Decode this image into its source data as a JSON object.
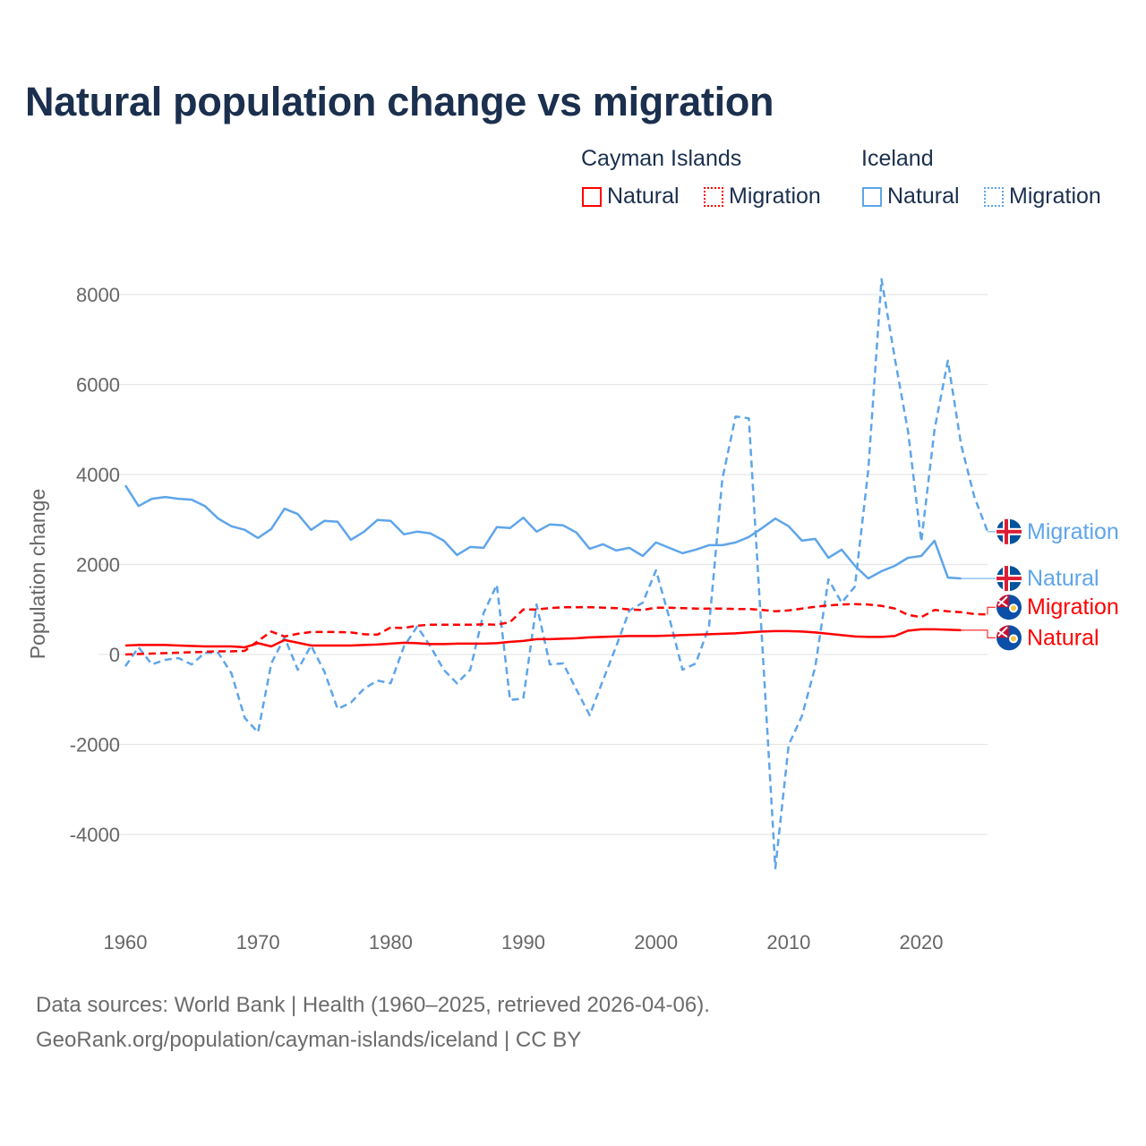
{
  "title": "Natural population change vs migration",
  "legend": {
    "groups": [
      {
        "name": "Cayman Islands",
        "color": "#ff0000",
        "items": [
          "Natural",
          "Migration"
        ]
      },
      {
        "name": "Iceland",
        "color": "#5ea5ea",
        "items": [
          "Natural",
          "Migration"
        ]
      }
    ]
  },
  "footer": {
    "line1": "Data sources: World Bank | Health (1960–2025, retrieved 2026-04-06).",
    "line2": "GeoRank.org/population/cayman-islands/iceland | CC BY"
  },
  "chart_data": {
    "type": "line",
    "title": "Natural population change vs migration",
    "xlabel": "",
    "ylabel": "Population change",
    "xlim": [
      1960,
      2025
    ],
    "ylim": [
      -5000,
      8500
    ],
    "xticks": [
      1960,
      1970,
      1980,
      1990,
      2000,
      2010,
      2020
    ],
    "yticks": [
      -4000,
      -2000,
      0,
      2000,
      4000,
      6000,
      8000
    ],
    "grid": true,
    "legend_position": "top-right",
    "series": [
      {
        "country": "Iceland",
        "name": "Migration",
        "style": "dashed",
        "color": "#5ea5ea",
        "start": 1960,
        "values": [
          -260,
          160,
          -220,
          -120,
          -80,
          -220,
          40,
          40,
          -420,
          -1410,
          -1730,
          -200,
          380,
          -340,
          200,
          -380,
          -1210,
          -1070,
          -760,
          -580,
          -640,
          180,
          620,
          180,
          -340,
          -640,
          -340,
          920,
          1550,
          -1010,
          -980,
          1110,
          -220,
          -200,
          -780,
          -1350,
          -580,
          180,
          980,
          1150,
          1870,
          820,
          -340,
          -200,
          620,
          3900,
          5290,
          5250,
          300,
          -4750,
          -2010,
          -1370,
          -280,
          1670,
          1150,
          1510,
          4100,
          8340,
          6590,
          4960,
          2510,
          5000,
          6530,
          4660,
          3500,
          2730
        ]
      },
      {
        "country": "Iceland",
        "name": "Natural",
        "style": "solid",
        "color": "#5ea5ea",
        "start": 1960,
        "values": [
          3760,
          3300,
          3460,
          3500,
          3460,
          3440,
          3300,
          3020,
          2850,
          2770,
          2590,
          2790,
          3240,
          3120,
          2770,
          2970,
          2950,
          2550,
          2730,
          2990,
          2970,
          2670,
          2730,
          2690,
          2530,
          2210,
          2390,
          2370,
          2830,
          2810,
          3040,
          2730,
          2890,
          2870,
          2710,
          2350,
          2450,
          2310,
          2370,
          2190,
          2490,
          2370,
          2250,
          2330,
          2430,
          2430,
          2490,
          2610,
          2810,
          3020,
          2850,
          2530,
          2570,
          2150,
          2330,
          1970,
          1690,
          1850,
          1970,
          2150,
          2190,
          2530,
          1710,
          1690
        ]
      },
      {
        "country": "Cayman Islands",
        "name": "Migration",
        "style": "dashed",
        "color": "#ff0000",
        "start": 1960,
        "values": [
          0,
          10,
          20,
          30,
          40,
          50,
          60,
          70,
          70,
          80,
          300,
          510,
          400,
          460,
          500,
          500,
          500,
          490,
          450,
          440,
          600,
          590,
          640,
          660,
          660,
          660,
          660,
          670,
          660,
          720,
          1000,
          1000,
          1030,
          1050,
          1050,
          1050,
          1040,
          1030,
          1000,
          990,
          1040,
          1040,
          1030,
          1020,
          1020,
          1020,
          1010,
          1010,
          990,
          960,
          980,
          1020,
          1060,
          1090,
          1110,
          1120,
          1110,
          1080,
          1020,
          880,
          830,
          990,
          960,
          940,
          900,
          890
        ]
      },
      {
        "country": "Cayman Islands",
        "name": "Natural",
        "style": "solid",
        "color": "#ff0000",
        "start": 1960,
        "values": [
          200,
          210,
          210,
          210,
          200,
          190,
          180,
          180,
          180,
          160,
          250,
          180,
          320,
          260,
          200,
          200,
          200,
          200,
          210,
          220,
          240,
          260,
          250,
          230,
          230,
          240,
          240,
          240,
          250,
          280,
          300,
          340,
          340,
          350,
          360,
          380,
          390,
          400,
          410,
          410,
          410,
          420,
          430,
          440,
          450,
          460,
          470,
          490,
          510,
          520,
          520,
          510,
          490,
          460,
          430,
          400,
          390,
          390,
          410,
          530,
          560,
          560,
          550,
          540
        ]
      }
    ],
    "end_labels": [
      {
        "text": "Migration",
        "color": "#5ea5ea",
        "flag": "iceland",
        "value": 2730
      },
      {
        "text": "Natural",
        "color": "#5ea5ea",
        "flag": "iceland",
        "value": 1690
      },
      {
        "text": "Migration",
        "color": "#ff0000",
        "flag": "cayman",
        "value": 1050
      },
      {
        "text": "Natural",
        "color": "#ff0000",
        "flag": "cayman",
        "value": 370
      }
    ]
  }
}
